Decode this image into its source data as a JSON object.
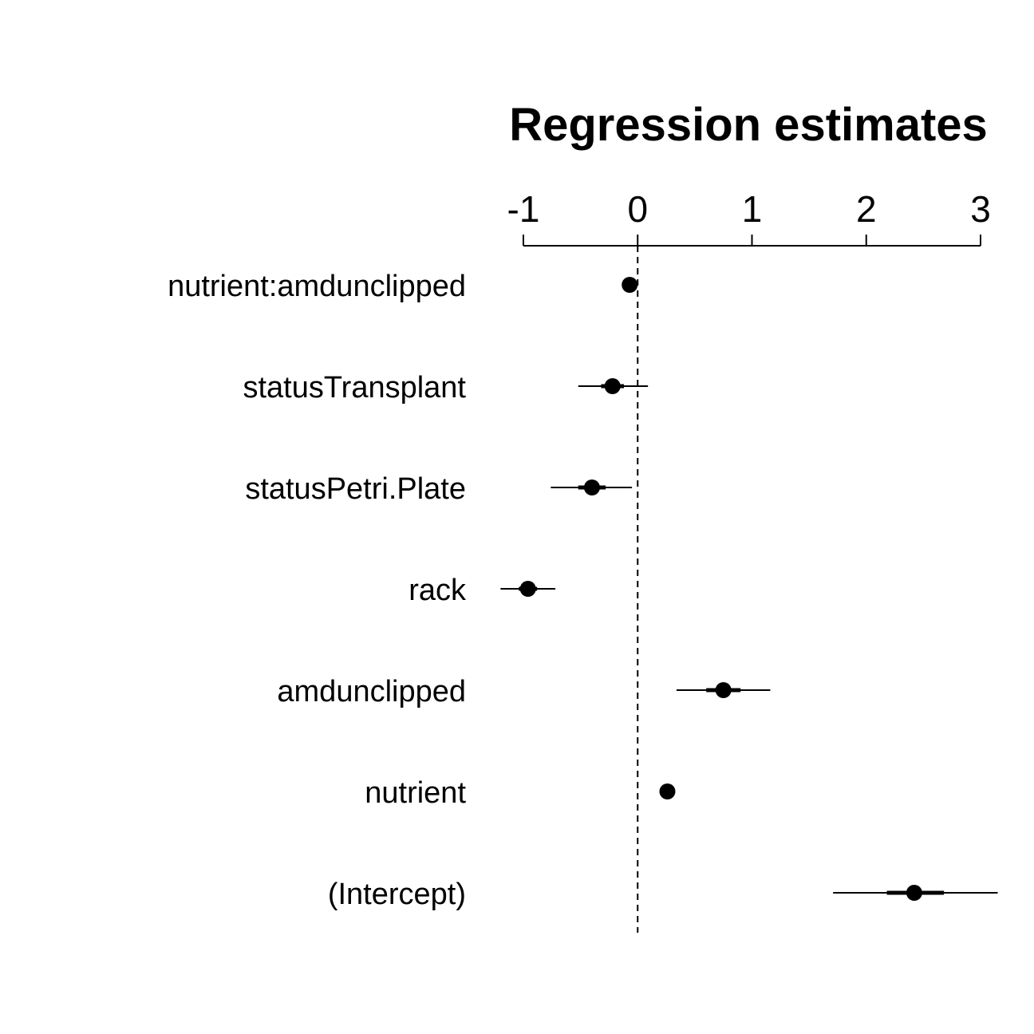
{
  "chart_data": {
    "type": "scatter",
    "subtype": "coefficient-plot",
    "title": "Regression estimates",
    "xlim": [
      -1,
      3
    ],
    "x_ticks": [
      -1,
      0,
      1,
      2,
      3
    ],
    "x_tick_labels": [
      "-1",
      "0",
      "1",
      "2",
      "3"
    ],
    "axis_position": "top",
    "reference_line": 0,
    "grid": false,
    "legend": "none",
    "colors": {
      "marks": "#000000",
      "background": "#ffffff"
    },
    "coefficients": [
      {
        "label": "nutrient:amdunclipped",
        "estimate": -0.07,
        "inner": [
          -0.1,
          -0.04
        ],
        "outer": [
          -0.12,
          -0.02
        ]
      },
      {
        "label": "statusTransplant",
        "estimate": -0.22,
        "inner": [
          -0.32,
          -0.12
        ],
        "outer": [
          -0.52,
          0.09
        ]
      },
      {
        "label": "statusPetri.Plate",
        "estimate": -0.4,
        "inner": [
          -0.52,
          -0.28
        ],
        "outer": [
          -0.76,
          -0.05
        ]
      },
      {
        "label": "rack",
        "estimate": -0.96,
        "inner": [
          -1.04,
          -0.88
        ],
        "outer": [
          -1.2,
          -0.72
        ]
      },
      {
        "label": "amdunclipped",
        "estimate": 0.75,
        "inner": [
          0.6,
          0.9
        ],
        "outer": [
          0.34,
          1.16
        ]
      },
      {
        "label": "nutrient",
        "estimate": 0.26,
        "inner": [
          0.24,
          0.28
        ],
        "outer": [
          0.23,
          0.29
        ]
      },
      {
        "label": "(Intercept)",
        "estimate": 2.42,
        "inner": [
          2.18,
          2.68
        ],
        "outer": [
          1.71,
          3.15
        ]
      }
    ]
  }
}
